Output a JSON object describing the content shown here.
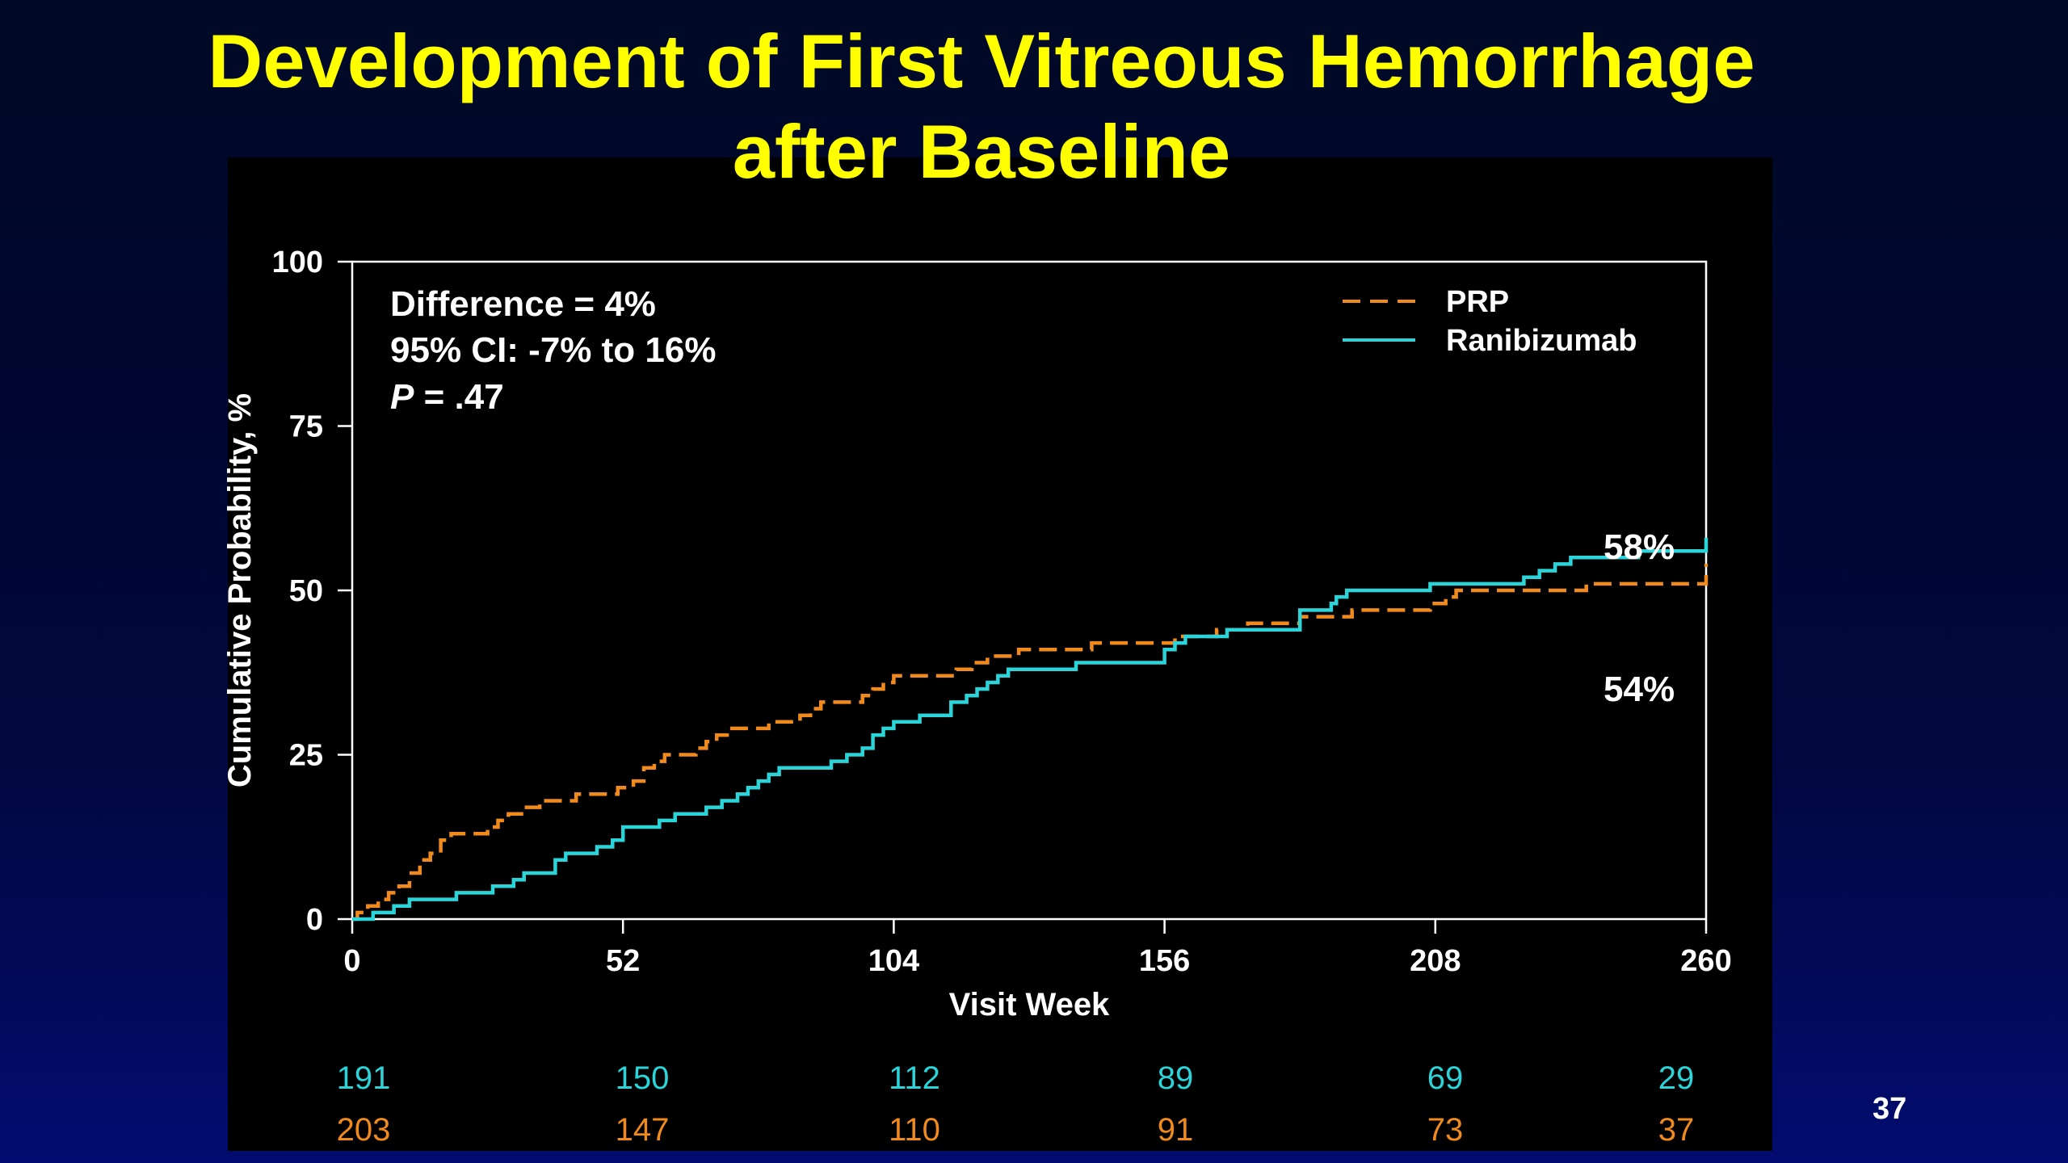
{
  "slide": {
    "title_line1": "Development of First Vitreous Hemorrhage",
    "title_line2": "after Baseline",
    "page_number": "37"
  },
  "colors": {
    "title": "#ffff00",
    "prp": "#f08a1c",
    "ranibizumab": "#2ad4d8",
    "background": "#000000",
    "text": "#ffffff"
  },
  "chart_data": {
    "type": "line",
    "subtype": "step (Kaplan-Meier cumulative probability)",
    "title": "",
    "xlabel": "Visit Week",
    "ylabel": "Cumulative Probability, %",
    "xlim": [
      0,
      260
    ],
    "ylim": [
      0,
      100
    ],
    "x_ticks": [
      0,
      52,
      104,
      156,
      208,
      260
    ],
    "y_ticks": [
      0,
      25,
      50,
      75,
      100
    ],
    "grid": false,
    "legend_position": "top-right",
    "annotations": {
      "stats_line1": "Difference = 4%",
      "stats_line2": "95% CI: -7% to 16%",
      "p_label": "P",
      "p_value": " = .47",
      "ranibizumab_end_label": "58%",
      "prp_end_label": "54%"
    },
    "series": [
      {
        "name": "PRP",
        "style": "dashed",
        "color": "#f08a1c",
        "points": [
          [
            0,
            0
          ],
          [
            1,
            1
          ],
          [
            3,
            2
          ],
          [
            5,
            3
          ],
          [
            7,
            4
          ],
          [
            9,
            5
          ],
          [
            11,
            7
          ],
          [
            13,
            9
          ],
          [
            15,
            10
          ],
          [
            17,
            12
          ],
          [
            19,
            13
          ],
          [
            24,
            13
          ],
          [
            26,
            14
          ],
          [
            28,
            15
          ],
          [
            30,
            16
          ],
          [
            33,
            17
          ],
          [
            36,
            18
          ],
          [
            41,
            18
          ],
          [
            43,
            19
          ],
          [
            49,
            19
          ],
          [
            51,
            20
          ],
          [
            54,
            21
          ],
          [
            56,
            23
          ],
          [
            58,
            24
          ],
          [
            60,
            25
          ],
          [
            64,
            25
          ],
          [
            66,
            26
          ],
          [
            68,
            27
          ],
          [
            70,
            28
          ],
          [
            72,
            29
          ],
          [
            78,
            29
          ],
          [
            80,
            30
          ],
          [
            84,
            30
          ],
          [
            86,
            31
          ],
          [
            88,
            32
          ],
          [
            90,
            33
          ],
          [
            96,
            33
          ],
          [
            98,
            34
          ],
          [
            100,
            35
          ],
          [
            102,
            36
          ],
          [
            104,
            37
          ],
          [
            114,
            37
          ],
          [
            116,
            38
          ],
          [
            119,
            39
          ],
          [
            122,
            40
          ],
          [
            128,
            41
          ],
          [
            140,
            41
          ],
          [
            142,
            42
          ],
          [
            156,
            42
          ],
          [
            158,
            43
          ],
          [
            164,
            43
          ],
          [
            166,
            44
          ],
          [
            172,
            45
          ],
          [
            180,
            45
          ],
          [
            182,
            46
          ],
          [
            190,
            46
          ],
          [
            192,
            47
          ],
          [
            205,
            47
          ],
          [
            207,
            48
          ],
          [
            210,
            49
          ],
          [
            212,
            50
          ],
          [
            235,
            50
          ],
          [
            237,
            51
          ],
          [
            259,
            51
          ],
          [
            260,
            54
          ]
        ]
      },
      {
        "name": "Ranibizumab",
        "style": "solid",
        "color": "#2ad4d8",
        "points": [
          [
            0,
            0
          ],
          [
            3,
            0
          ],
          [
            4,
            1
          ],
          [
            8,
            2
          ],
          [
            11,
            3
          ],
          [
            19,
            3
          ],
          [
            20,
            4
          ],
          [
            26,
            4
          ],
          [
            27,
            5
          ],
          [
            30,
            5
          ],
          [
            31,
            6
          ],
          [
            33,
            7
          ],
          [
            37,
            7
          ],
          [
            39,
            9
          ],
          [
            41,
            10
          ],
          [
            45,
            10
          ],
          [
            47,
            11
          ],
          [
            50,
            12
          ],
          [
            52,
            14
          ],
          [
            57,
            14
          ],
          [
            59,
            15
          ],
          [
            62,
            16
          ],
          [
            66,
            16
          ],
          [
            68,
            17
          ],
          [
            71,
            18
          ],
          [
            74,
            19
          ],
          [
            76,
            20
          ],
          [
            78,
            21
          ],
          [
            80,
            22
          ],
          [
            82,
            23
          ],
          [
            90,
            23
          ],
          [
            92,
            24
          ],
          [
            95,
            25
          ],
          [
            98,
            26
          ],
          [
            100,
            28
          ],
          [
            102,
            29
          ],
          [
            104,
            30
          ],
          [
            107,
            30
          ],
          [
            109,
            31
          ],
          [
            113,
            31
          ],
          [
            115,
            33
          ],
          [
            118,
            34
          ],
          [
            120,
            35
          ],
          [
            122,
            36
          ],
          [
            124,
            37
          ],
          [
            126,
            38
          ],
          [
            136,
            38
          ],
          [
            139,
            39
          ],
          [
            154,
            39
          ],
          [
            156,
            41
          ],
          [
            158,
            42
          ],
          [
            160,
            43
          ],
          [
            166,
            43
          ],
          [
            168,
            44
          ],
          [
            180,
            44
          ],
          [
            182,
            47
          ],
          [
            186,
            47
          ],
          [
            188,
            48
          ],
          [
            189,
            49
          ],
          [
            191,
            50
          ],
          [
            204,
            50
          ],
          [
            207,
            51
          ],
          [
            223,
            51
          ],
          [
            225,
            52
          ],
          [
            228,
            53
          ],
          [
            231,
            54
          ],
          [
            234,
            55
          ],
          [
            244,
            55
          ],
          [
            247,
            56
          ],
          [
            259,
            56
          ],
          [
            260,
            58
          ]
        ]
      }
    ],
    "at_risk": {
      "weeks": [
        0,
        52,
        104,
        156,
        208,
        260
      ],
      "ranibizumab": [
        "191",
        "150",
        "112",
        "89",
        "69",
        "29"
      ],
      "prp": [
        "203",
        "147",
        "110",
        "91",
        "73",
        "37"
      ]
    }
  }
}
